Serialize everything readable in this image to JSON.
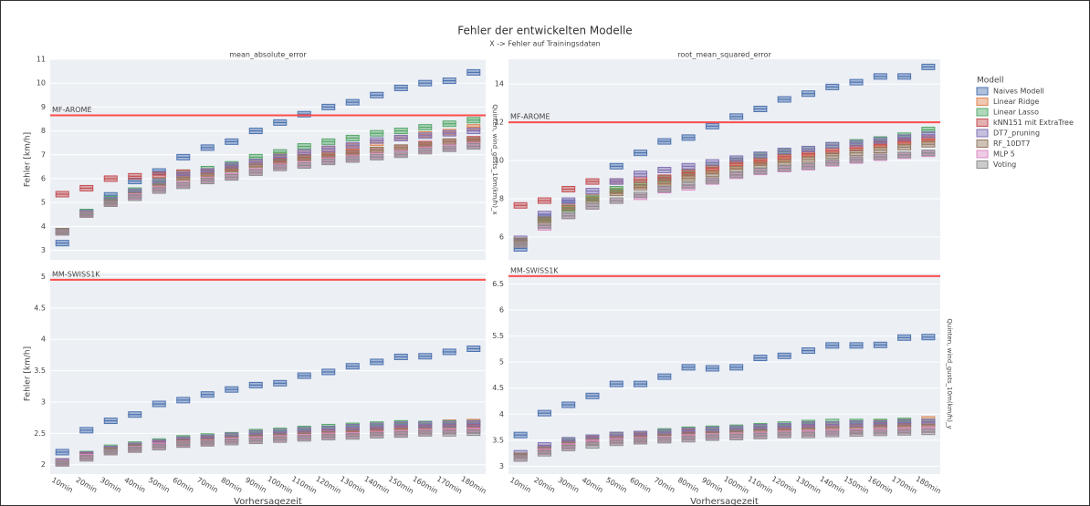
{
  "figure": {
    "title": "Fehler der entwickelten Modelle",
    "subtitle": "X -> Fehler auf Trainingsdaten",
    "legend_title": "Modell"
  },
  "chart_data": [
    {
      "type": "box",
      "title": "mean_absolute_error",
      "row_label": "Quinten, wind_gusts_10m(km/h)_x",
      "y_label": "Fehler [km/h]",
      "categories": [
        null,
        null,
        null,
        null,
        null,
        null,
        null,
        null,
        null,
        null,
        null,
        null,
        null,
        null,
        null,
        null,
        null,
        null
      ],
      "ylim": [
        2.6,
        11
      ],
      "yticks": [
        3,
        4,
        5,
        6,
        7,
        8,
        9,
        10,
        11
      ],
      "reference": {
        "value": 8.65,
        "label": "MF-AROME",
        "color": "#ff4d4d"
      },
      "series": [
        {
          "name": "Naives Modell",
          "color": "#4c72b0",
          "values": [
            3.3,
            4.6,
            5.3,
            5.9,
            6.3,
            6.9,
            7.3,
            7.55,
            8.0,
            8.35,
            8.7,
            9.0,
            9.2,
            9.5,
            9.8,
            10.0,
            10.1,
            10.45
          ]
        },
        {
          "name": "Linear Ridge",
          "color": "#dd8452",
          "values": [
            3.8,
            4.55,
            5.05,
            5.4,
            5.8,
            6.1,
            6.25,
            6.5,
            6.7,
            6.95,
            7.1,
            7.25,
            7.35,
            7.5,
            7.7,
            7.85,
            7.95,
            8.15
          ]
        },
        {
          "name": "Linear Lasso",
          "color": "#55a868",
          "values": [
            3.8,
            4.6,
            5.15,
            5.5,
            5.9,
            6.25,
            6.4,
            6.6,
            6.9,
            7.1,
            7.35,
            7.55,
            7.7,
            7.9,
            8.0,
            8.15,
            8.3,
            8.45
          ]
        },
        {
          "name": "kNN151 mit ExtraTree",
          "color": "#c44e52",
          "values": [
            5.35,
            5.6,
            6.0,
            6.1,
            6.15,
            6.25,
            6.3,
            6.45,
            6.6,
            6.75,
            6.9,
            7.0,
            7.1,
            7.2,
            7.3,
            7.45,
            7.55,
            7.65
          ]
        },
        {
          "name": "DT7_pruning",
          "color": "#8172b3",
          "values": [
            3.8,
            4.55,
            5.1,
            5.45,
            5.85,
            6.15,
            6.3,
            6.55,
            6.7,
            6.9,
            7.1,
            7.25,
            7.4,
            7.6,
            7.7,
            7.8,
            7.9,
            8.0
          ]
        },
        {
          "name": "RF_10DT7",
          "color": "#937860",
          "values": [
            3.8,
            4.5,
            5.0,
            5.3,
            5.65,
            5.95,
            6.1,
            6.3,
            6.5,
            6.7,
            6.85,
            6.95,
            7.05,
            7.2,
            7.3,
            7.4,
            7.55,
            7.6
          ]
        },
        {
          "name": "MLP 5",
          "color": "#da8bc3",
          "values": [
            3.75,
            4.5,
            4.95,
            5.25,
            5.55,
            5.75,
            5.95,
            6.1,
            6.3,
            6.5,
            6.6,
            6.75,
            6.85,
            6.95,
            7.05,
            7.2,
            7.3,
            7.4
          ]
        },
        {
          "name": "Voting",
          "color": "#8c8c8c",
          "values": [
            3.75,
            4.5,
            4.95,
            5.2,
            5.5,
            5.7,
            5.9,
            6.05,
            6.25,
            6.45,
            6.55,
            6.7,
            6.8,
            6.9,
            7.0,
            7.15,
            7.25,
            7.35
          ]
        }
      ]
    },
    {
      "type": "box",
      "title": "root_mean_squared_error",
      "categories": [
        null,
        null,
        null,
        null,
        null,
        null,
        null,
        null,
        null,
        null,
        null,
        null,
        null,
        null,
        null,
        null,
        null,
        null
      ],
      "ylim": [
        4.8,
        15.3
      ],
      "yticks": [
        6,
        8,
        10,
        12,
        14
      ],
      "reference": {
        "value": 12.0,
        "label": "MF-AROME",
        "color": "#ff4d4d"
      },
      "series": [
        {
          "color": "#4c72b0",
          "values": [
            5.4,
            7.0,
            7.8,
            8.1,
            9.7,
            10.4,
            11.0,
            11.2,
            11.8,
            12.3,
            12.7,
            13.2,
            13.5,
            13.85,
            14.1,
            14.4,
            14.4,
            14.9
          ]
        },
        {
          "color": "#dd8452",
          "values": [
            5.7,
            6.8,
            7.6,
            8.1,
            8.4,
            8.7,
            8.9,
            9.2,
            9.5,
            9.75,
            9.95,
            10.1,
            10.3,
            10.5,
            10.65,
            10.8,
            10.95,
            11.1
          ]
        },
        {
          "color": "#55a868",
          "values": [
            5.7,
            6.9,
            7.4,
            8.0,
            8.5,
            8.85,
            9.05,
            9.4,
            9.75,
            10.0,
            10.25,
            10.45,
            10.6,
            10.8,
            10.95,
            11.1,
            11.3,
            11.6
          ]
        },
        {
          "color": "#c44e52",
          "values": [
            7.65,
            7.9,
            8.5,
            8.9,
            8.9,
            9.0,
            9.1,
            9.35,
            9.6,
            9.85,
            10.0,
            10.2,
            10.35,
            10.5,
            10.65,
            10.85,
            11.0,
            11.2
          ]
        },
        {
          "color": "#8172b3",
          "values": [
            5.9,
            7.2,
            7.9,
            8.4,
            8.9,
            9.3,
            9.5,
            9.7,
            9.9,
            10.1,
            10.3,
            10.5,
            10.6,
            10.8,
            10.9,
            11.05,
            11.2,
            11.35
          ]
        },
        {
          "color": "#937860",
          "values": [
            5.8,
            6.9,
            7.5,
            7.9,
            8.3,
            8.6,
            8.8,
            9.05,
            9.3,
            9.55,
            9.75,
            9.9,
            10.05,
            10.25,
            10.4,
            10.55,
            10.7,
            10.85
          ]
        },
        {
          "color": "#da8bc3",
          "values": [
            5.6,
            6.5,
            7.1,
            7.6,
            7.9,
            8.1,
            8.45,
            8.6,
            8.9,
            9.2,
            9.4,
            9.55,
            9.65,
            9.85,
            10.0,
            10.15,
            10.25,
            10.35
          ]
        },
        {
          "color": "#8c8c8c",
          "values": [
            5.6,
            6.6,
            7.1,
            7.6,
            7.9,
            8.2,
            8.5,
            8.7,
            8.95,
            9.25,
            9.45,
            9.6,
            9.7,
            9.9,
            10.05,
            10.2,
            10.3,
            10.4
          ]
        }
      ]
    },
    {
      "type": "box",
      "y_label": "Fehler [km/h]",
      "x_label": "Vorhersagezeit",
      "categories": [
        "10min",
        "20min",
        "30min",
        "40min",
        "50min",
        "60min",
        "70min",
        "80min",
        "90min",
        "100min",
        "110min",
        "120min",
        "130min",
        "140min",
        "150min",
        "160min",
        "170min",
        "180min"
      ],
      "ylim": [
        1.85,
        5.05
      ],
      "yticks": [
        2,
        2.5,
        3,
        3.5,
        4,
        4.5,
        5
      ],
      "reference": {
        "value": 4.95,
        "label": "MM-SWISS1K",
        "color": "#ff4d4d"
      },
      "series": [
        {
          "color": "#4c72b0",
          "values": [
            2.2,
            2.55,
            2.7,
            2.8,
            2.97,
            3.03,
            3.12,
            3.2,
            3.27,
            3.3,
            3.42,
            3.48,
            3.57,
            3.64,
            3.72,
            3.73,
            3.8,
            3.85
          ]
        },
        {
          "color": "#dd8452",
          "values": [
            2.05,
            2.15,
            2.25,
            2.3,
            2.35,
            2.4,
            2.42,
            2.45,
            2.5,
            2.52,
            2.55,
            2.57,
            2.6,
            2.62,
            2.63,
            2.65,
            2.67,
            2.68
          ]
        },
        {
          "color": "#55a868",
          "values": [
            2.05,
            2.17,
            2.27,
            2.32,
            2.37,
            2.42,
            2.45,
            2.47,
            2.52,
            2.54,
            2.57,
            2.6,
            2.62,
            2.64,
            2.66,
            2.65,
            2.66,
            2.66
          ]
        },
        {
          "color": "#c44e52",
          "values": [
            2.05,
            2.15,
            2.25,
            2.3,
            2.33,
            2.37,
            2.4,
            2.42,
            2.45,
            2.47,
            2.5,
            2.51,
            2.53,
            2.55,
            2.57,
            2.58,
            2.6,
            2.6
          ]
        },
        {
          "color": "#8172b3",
          "values": [
            2.05,
            2.16,
            2.25,
            2.3,
            2.35,
            2.4,
            2.43,
            2.46,
            2.5,
            2.52,
            2.55,
            2.57,
            2.6,
            2.62,
            2.64,
            2.64,
            2.65,
            2.66
          ]
        },
        {
          "color": "#937860",
          "values": [
            2.03,
            2.12,
            2.22,
            2.27,
            2.3,
            2.35,
            2.37,
            2.4,
            2.42,
            2.44,
            2.46,
            2.48,
            2.5,
            2.52,
            2.53,
            2.54,
            2.55,
            2.55
          ]
        },
        {
          "color": "#da8bc3",
          "values": [
            2.03,
            2.12,
            2.2,
            2.25,
            2.3,
            2.33,
            2.35,
            2.38,
            2.4,
            2.42,
            2.44,
            2.46,
            2.47,
            2.49,
            2.5,
            2.52,
            2.53,
            2.54
          ]
        },
        {
          "color": "#8c8c8c",
          "values": [
            2.02,
            2.1,
            2.2,
            2.24,
            2.28,
            2.32,
            2.34,
            2.36,
            2.38,
            2.4,
            2.42,
            2.44,
            2.45,
            2.47,
            2.48,
            2.5,
            2.5,
            2.51
          ]
        }
      ]
    },
    {
      "type": "box",
      "row_label": "Quinten, wind_gusts_10m(km/h)_y",
      "x_label": "Vorhersagezeit",
      "categories": [
        "10min",
        "20min",
        "30min",
        "40min",
        "50min",
        "60min",
        "70min",
        "80min",
        "90min",
        "100min",
        "110min",
        "120min",
        "130min",
        "140min",
        "150min",
        "160min",
        "170min",
        "180min"
      ],
      "ylim": [
        2.85,
        6.7
      ],
      "yticks": [
        3,
        3.5,
        4,
        4.5,
        5,
        5.5,
        6,
        6.5
      ],
      "reference": {
        "value": 6.65,
        "label": "MM-SWISS1K",
        "color": "#ff4d4d"
      },
      "series": [
        {
          "color": "#4c72b0",
          "values": [
            3.6,
            4.02,
            4.18,
            4.35,
            4.58,
            4.58,
            4.72,
            4.9,
            4.88,
            4.9,
            5.08,
            5.12,
            5.22,
            5.32,
            5.32,
            5.33,
            5.47,
            5.48
          ]
        },
        {
          "color": "#dd8452",
          "values": [
            3.2,
            3.35,
            3.45,
            3.55,
            3.6,
            3.6,
            3.65,
            3.7,
            3.7,
            3.72,
            3.75,
            3.75,
            3.8,
            3.8,
            3.82,
            3.83,
            3.85,
            3.9
          ]
        },
        {
          "color": "#55a868",
          "values": [
            3.2,
            3.35,
            3.48,
            3.55,
            3.6,
            3.62,
            3.67,
            3.7,
            3.72,
            3.74,
            3.77,
            3.8,
            3.83,
            3.85,
            3.85,
            3.85,
            3.87,
            3.85
          ]
        },
        {
          "color": "#c44e52",
          "values": [
            3.2,
            3.35,
            3.45,
            3.52,
            3.55,
            3.58,
            3.6,
            3.65,
            3.65,
            3.67,
            3.7,
            3.72,
            3.73,
            3.75,
            3.76,
            3.78,
            3.78,
            3.8
          ]
        },
        {
          "color": "#8172b3",
          "values": [
            3.25,
            3.4,
            3.5,
            3.55,
            3.6,
            3.62,
            3.65,
            3.68,
            3.7,
            3.72,
            3.75,
            3.77,
            3.8,
            3.8,
            3.82,
            3.82,
            3.84,
            3.85
          ]
        },
        {
          "color": "#937860",
          "values": [
            3.2,
            3.3,
            3.4,
            3.47,
            3.5,
            3.52,
            3.55,
            3.58,
            3.6,
            3.62,
            3.64,
            3.66,
            3.68,
            3.7,
            3.7,
            3.72,
            3.73,
            3.75
          ]
        },
        {
          "color": "#da8bc3",
          "values": [
            3.15,
            3.28,
            3.38,
            3.45,
            3.48,
            3.5,
            3.52,
            3.55,
            3.57,
            3.58,
            3.6,
            3.62,
            3.63,
            3.65,
            3.66,
            3.67,
            3.68,
            3.7
          ]
        },
        {
          "color": "#8c8c8c",
          "values": [
            3.15,
            3.25,
            3.35,
            3.4,
            3.45,
            3.48,
            3.5,
            3.52,
            3.55,
            3.56,
            3.58,
            3.6,
            3.6,
            3.62,
            3.63,
            3.64,
            3.65,
            3.66
          ]
        }
      ]
    }
  ]
}
